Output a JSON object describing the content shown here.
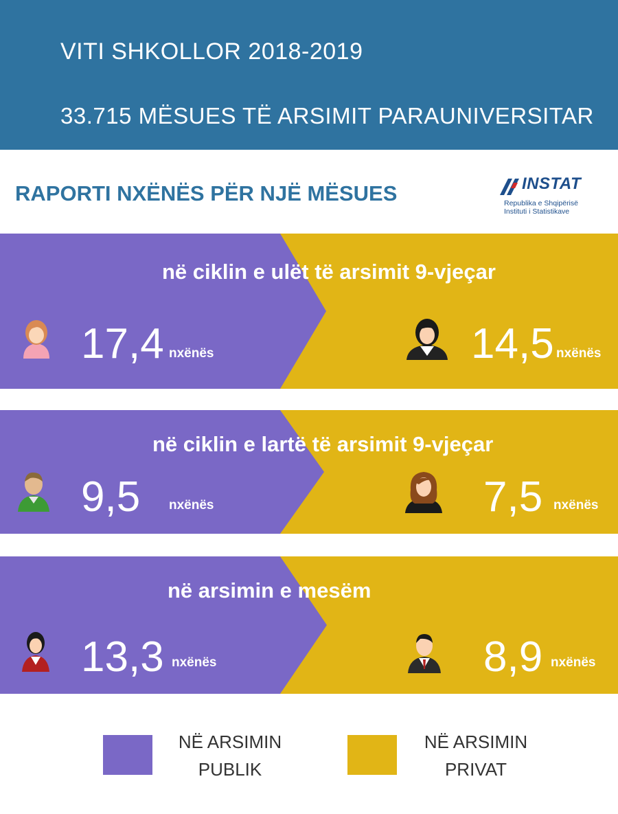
{
  "header": {
    "line1": "VITI SHKOLLOR 2018-2019",
    "line2": "33.715 MËSUES TË ARSIMIT PARAUNIVERSITAR"
  },
  "subtitle": "RAPORTI NXËNËS PËR NJË MËSUES",
  "logo": {
    "name": "INSTAT",
    "line1": "Republika e Shqipërisë",
    "line2": "Instituti i Statistikave"
  },
  "colors": {
    "header": "#2f73a0",
    "public": "#7a68c6",
    "private": "#e1b516"
  },
  "chart_data": {
    "type": "table",
    "title": "RAPORTI NXËNËS PËR NJË MËSUES",
    "unit": "nxënës",
    "series": [
      {
        "name": "NË ARSIMIN PUBLIK",
        "values": [
          17.4,
          9.5,
          13.3
        ]
      },
      {
        "name": "NË ARSIMIN PRIVAT",
        "values": [
          14.5,
          7.5,
          8.9
        ]
      }
    ],
    "categories": [
      "në ciklin e ulët të arsimit 9-vjeçar",
      "në ciklin e lartë të arsimit 9-vjeçar",
      "në arsimin e mesëm"
    ],
    "rows": [
      {
        "category": "në ciklin e ulët të arsimit 9-vjeçar",
        "public": "17,4",
        "private": "14,5",
        "public_icon": "girl-student-icon",
        "private_icon": "woman-student-icon"
      },
      {
        "category": "në ciklin e lartë të arsimit 9-vjeçar",
        "public": "9,5",
        "private": "7,5",
        "public_icon": "boy-student-icon",
        "private_icon": "girl-longhair-icon"
      },
      {
        "category": "në arsimin e mesëm",
        "public": "13,3",
        "private": "8,9",
        "public_icon": "woman-suit-icon",
        "private_icon": "man-suit-icon"
      }
    ]
  },
  "unit_label": "nxënës",
  "legend": {
    "public_label": "NË ARSIMIN PUBLIK",
    "private_label": "NË ARSIMIN PRIVAT"
  }
}
